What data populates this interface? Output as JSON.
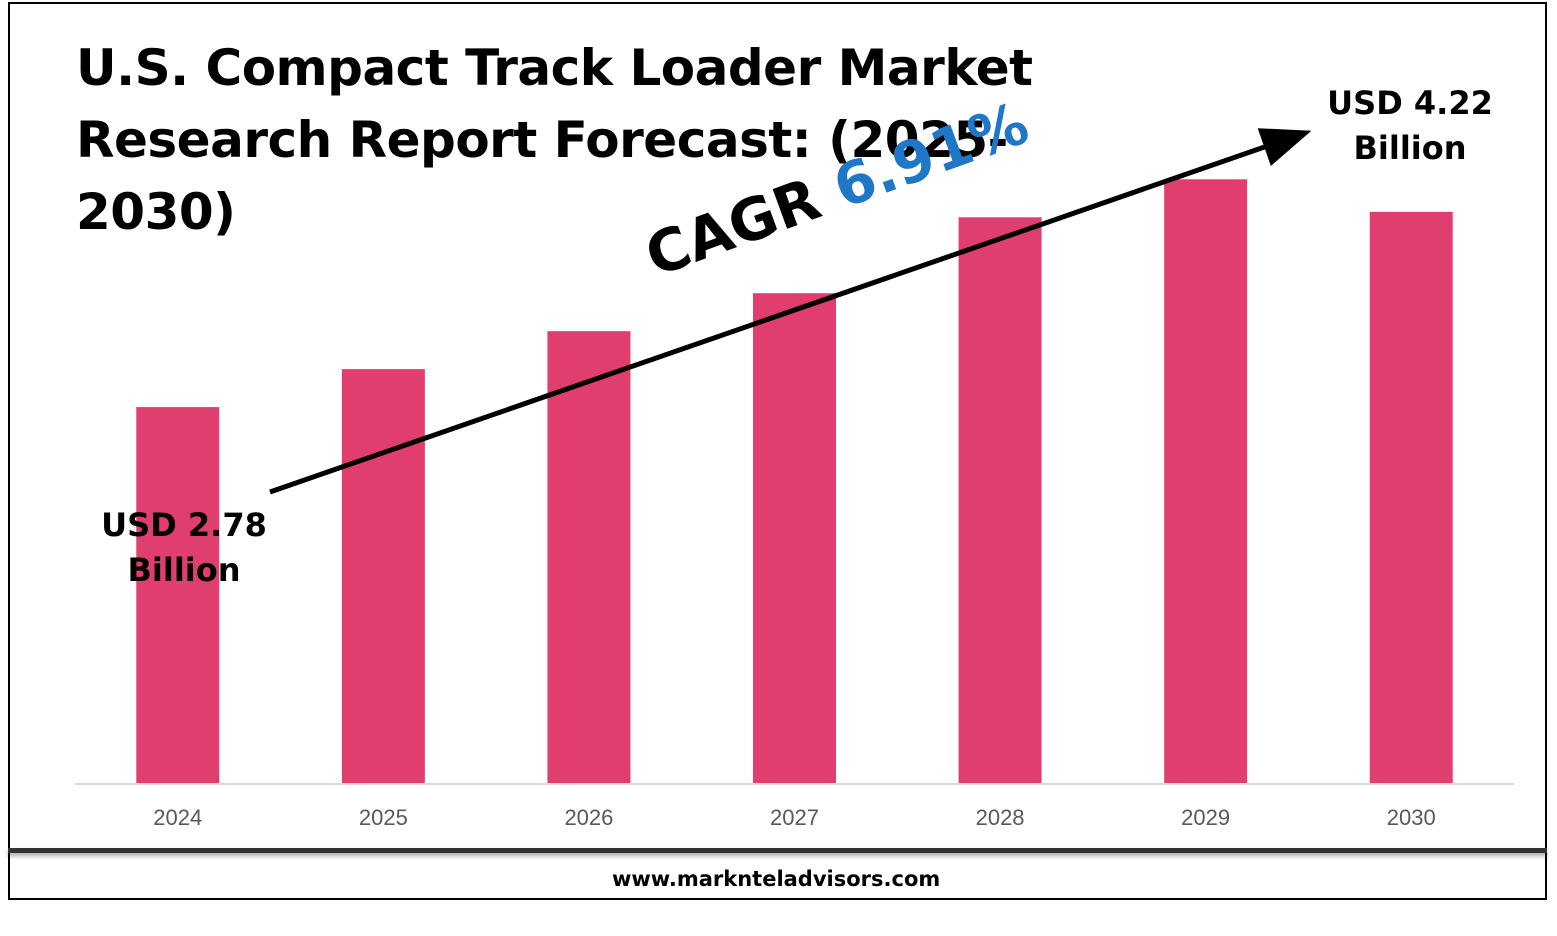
{
  "title": "U.S. Compact Track Loader Market Research Report Forecast: (2025-2030)",
  "cagr": {
    "label": "CAGR",
    "value": "6.91%"
  },
  "callouts": {
    "start": {
      "line1": "USD 2.78",
      "line2": "Billion"
    },
    "end": {
      "line1": "USD 4.22",
      "line2": "Billion"
    }
  },
  "website": "www.marknteladvisors.com",
  "colors": {
    "bar": "#e03e6e",
    "cagr_value": "#1f77c8",
    "axis": "#d9d9d9",
    "tick_text": "#595959"
  },
  "chart_data": {
    "type": "bar",
    "categories": [
      "2024",
      "2025",
      "2026",
      "2027",
      "2028",
      "2029",
      "2030"
    ],
    "values": [
      2.78,
      3.06,
      3.34,
      3.62,
      4.18,
      4.46,
      4.22
    ],
    "ylim": [
      0,
      4.75
    ],
    "grid": false,
    "legend": "none",
    "annotations": [
      "USD 2.78 Billion",
      "USD 4.22 Billion",
      "CAGR 6.91%"
    ]
  }
}
